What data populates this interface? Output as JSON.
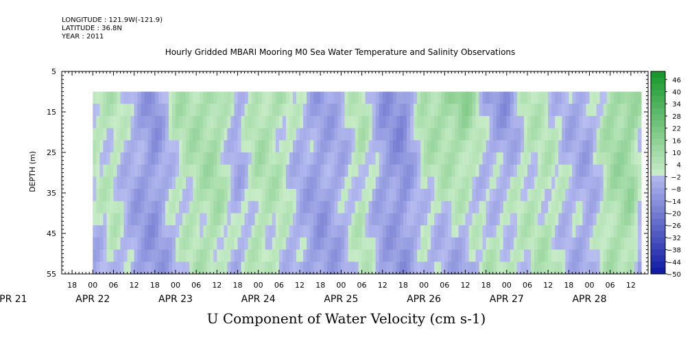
{
  "header": {
    "longitude": "LONGITUDE : 121.9W(-121.9)",
    "latitude": "LATITUDE : 36.8N",
    "year": "YEAR : 2011"
  },
  "chart_data": {
    "type": "heatmap",
    "title": "Hourly Gridded MBARI Mooring M0 Sea Water Temperature and Salinity Observations",
    "xlabel": "U Component of Water Velocity (cm s-1)",
    "ylabel": "DEPTH (m)",
    "y_ticks": [
      5,
      15,
      25,
      35,
      45,
      55
    ],
    "ylim": [
      55,
      5
    ],
    "y_inverted": true,
    "data_depth_range": [
      10,
      55
    ],
    "x_hour_ticks": [
      "18",
      "00",
      "06",
      "12",
      "18",
      "00",
      "06",
      "12",
      "18",
      "00",
      "06",
      "12",
      "18",
      "00",
      "06",
      "12",
      "18",
      "00",
      "06",
      "12",
      "18",
      "00",
      "06",
      "12",
      "18",
      "00",
      "06",
      "12"
    ],
    "x_hour_start": -6,
    "x_hour_step": 6,
    "x_date_labels": [
      "APR 21",
      "APR 22",
      "APR 23",
      "APR 24",
      "APR 25",
      "APR 26",
      "APR 27",
      "APR 28"
    ],
    "x_date_hours": [
      -24,
      0,
      24,
      48,
      72,
      96,
      120,
      144
    ],
    "xlim_hours": [
      -9,
      161
    ],
    "data_hour_range": [
      0,
      159
    ],
    "colorbar": {
      "levels": [
        46,
        40,
        34,
        28,
        22,
        16,
        10,
        4,
        -2,
        -8,
        -14,
        -20,
        -26,
        -32,
        -38,
        -44,
        -50
      ],
      "min": -50,
      "max": 50,
      "step": 3,
      "positive_color": "#1fd04a",
      "negative_color": "#2a3fd8"
    },
    "column_profile": [
      {
        "hour": 0,
        "surface": 6,
        "bottom": -6
      },
      {
        "hour": 6,
        "surface": 4,
        "bottom": 2
      },
      {
        "hour": 12,
        "surface": -4,
        "bottom": -8
      },
      {
        "hour": 18,
        "surface": -12,
        "bottom": -10
      },
      {
        "hour": 24,
        "surface": 6,
        "bottom": -4
      },
      {
        "hour": 30,
        "surface": 8,
        "bottom": 4
      },
      {
        "hour": 36,
        "surface": 10,
        "bottom": 6
      },
      {
        "hour": 42,
        "surface": -6,
        "bottom": -4
      },
      {
        "hour": 48,
        "surface": 8,
        "bottom": 4
      },
      {
        "hour": 54,
        "surface": 6,
        "bottom": 2
      },
      {
        "hour": 60,
        "surface": -2,
        "bottom": -6
      },
      {
        "hour": 66,
        "surface": -8,
        "bottom": -10
      },
      {
        "hour": 72,
        "surface": -4,
        "bottom": -6
      },
      {
        "hour": 78,
        "surface": 6,
        "bottom": 4
      },
      {
        "hour": 84,
        "surface": -10,
        "bottom": -6
      },
      {
        "hour": 90,
        "surface": -14,
        "bottom": -10
      },
      {
        "hour": 96,
        "surface": 8,
        "bottom": -4
      },
      {
        "hour": 102,
        "surface": 12,
        "bottom": -6
      },
      {
        "hour": 108,
        "surface": 16,
        "bottom": -8
      },
      {
        "hour": 114,
        "surface": -6,
        "bottom": 4
      },
      {
        "hour": 120,
        "surface": -12,
        "bottom": 6
      },
      {
        "hour": 126,
        "surface": 4,
        "bottom": 2
      },
      {
        "hour": 132,
        "surface": 2,
        "bottom": 6
      },
      {
        "hour": 138,
        "surface": -4,
        "bottom": -2
      },
      {
        "hour": 144,
        "surface": -6,
        "bottom": -6
      },
      {
        "hour": 150,
        "surface": 10,
        "bottom": 6
      },
      {
        "hour": 156,
        "surface": 14,
        "bottom": 8
      },
      {
        "hour": 159,
        "surface": 6,
        "bottom": -10
      }
    ]
  }
}
